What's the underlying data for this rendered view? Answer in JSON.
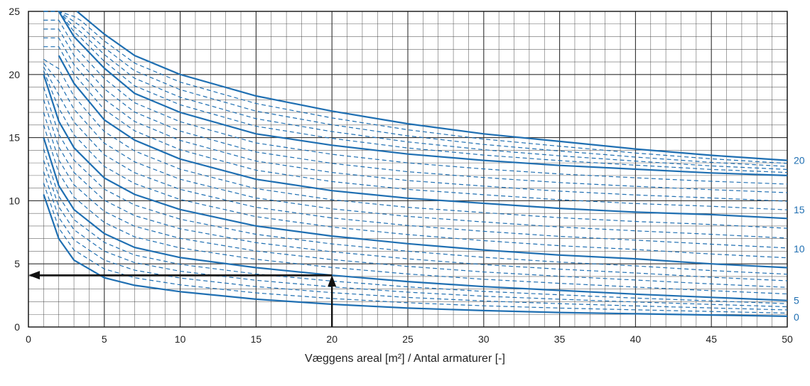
{
  "chart_data": {
    "type": "line",
    "title": "",
    "xlabel": "Væggens areal [m²] / Antal armaturer [-]",
    "ylabel": "",
    "xlim": [
      0,
      50
    ],
    "ylim": [
      0,
      25
    ],
    "x_ticks": [
      0,
      5,
      10,
      15,
      20,
      25,
      30,
      35,
      40,
      45,
      50
    ],
    "y_ticks": [
      0,
      5,
      10,
      15,
      20,
      25
    ],
    "grid": true,
    "grid_minor_x": 1,
    "grid_minor_y": 1,
    "colors": {
      "curve": "#1f6fb2",
      "arrow": "#111111",
      "grid": "#333333",
      "text": "#222222"
    },
    "curve_labels": [
      {
        "text": "20",
        "y": 13.2
      },
      {
        "text": "15",
        "y": 9.3
      },
      {
        "text": "10",
        "y": 6.2
      },
      {
        "text": "5",
        "y": 2.1
      },
      {
        "text": "0",
        "y": 0.8
      }
    ],
    "series": [
      {
        "style": "solid",
        "points": [
          [
            1,
            10.5
          ],
          [
            2,
            7.0
          ],
          [
            3,
            5.3
          ],
          [
            5,
            3.9
          ],
          [
            7,
            3.3
          ],
          [
            10,
            2.8
          ],
          [
            15,
            2.2
          ],
          [
            20,
            1.8
          ],
          [
            25,
            1.5
          ],
          [
            30,
            1.3
          ],
          [
            35,
            1.15
          ],
          [
            40,
            1.05
          ],
          [
            45,
            0.95
          ],
          [
            50,
            0.85
          ]
        ]
      },
      {
        "style": "solid",
        "points": [
          [
            1,
            15.0
          ],
          [
            2,
            11.2
          ],
          [
            3,
            9.3
          ],
          [
            5,
            7.4
          ],
          [
            7,
            6.3
          ],
          [
            10,
            5.5
          ],
          [
            15,
            4.7
          ],
          [
            20,
            4.1
          ],
          [
            25,
            3.6
          ],
          [
            30,
            3.2
          ],
          [
            35,
            2.9
          ],
          [
            40,
            2.6
          ],
          [
            45,
            2.35
          ],
          [
            50,
            2.1
          ]
        ]
      },
      {
        "style": "solid",
        "points": [
          [
            1,
            20.0
          ],
          [
            2,
            16.3
          ],
          [
            3,
            14.2
          ],
          [
            5,
            11.8
          ],
          [
            7,
            10.5
          ],
          [
            10,
            9.3
          ],
          [
            15,
            8.0
          ],
          [
            20,
            7.2
          ],
          [
            25,
            6.6
          ],
          [
            30,
            6.1
          ],
          [
            35,
            5.7
          ],
          [
            40,
            5.4
          ],
          [
            45,
            5.0
          ],
          [
            50,
            4.7
          ]
        ]
      },
      {
        "style": "solid",
        "points": [
          [
            2,
            21.5
          ],
          [
            3,
            19.3
          ],
          [
            5,
            16.4
          ],
          [
            7,
            14.8
          ],
          [
            10,
            13.3
          ],
          [
            15,
            11.7
          ],
          [
            20,
            10.8
          ],
          [
            25,
            10.2
          ],
          [
            30,
            9.8
          ],
          [
            35,
            9.4
          ],
          [
            40,
            9.1
          ],
          [
            45,
            8.9
          ],
          [
            50,
            8.6
          ]
        ]
      },
      {
        "style": "solid",
        "points": [
          [
            2,
            25.0
          ],
          [
            3,
            23.0
          ],
          [
            5,
            20.5
          ],
          [
            7,
            18.5
          ],
          [
            10,
            17.0
          ],
          [
            15,
            15.3
          ],
          [
            20,
            14.4
          ],
          [
            25,
            13.7
          ],
          [
            30,
            13.2
          ],
          [
            35,
            12.8
          ],
          [
            40,
            12.5
          ],
          [
            45,
            12.2
          ],
          [
            50,
            12.0
          ]
        ]
      },
      {
        "style": "solid",
        "points": [
          [
            3.2,
            25.0
          ],
          [
            5,
            23.2
          ],
          [
            7,
            21.5
          ],
          [
            10,
            20.0
          ],
          [
            15,
            18.3
          ],
          [
            20,
            17.1
          ],
          [
            25,
            16.1
          ],
          [
            30,
            15.3
          ],
          [
            35,
            14.7
          ],
          [
            40,
            14.1
          ],
          [
            45,
            13.6
          ],
          [
            50,
            13.2
          ]
        ]
      }
    ],
    "arrows": [
      {
        "from": [
          20,
          0
        ],
        "to": [
          20,
          4.1
        ]
      },
      {
        "from": [
          20,
          4.1
        ],
        "to": [
          0,
          4.1
        ]
      }
    ]
  }
}
